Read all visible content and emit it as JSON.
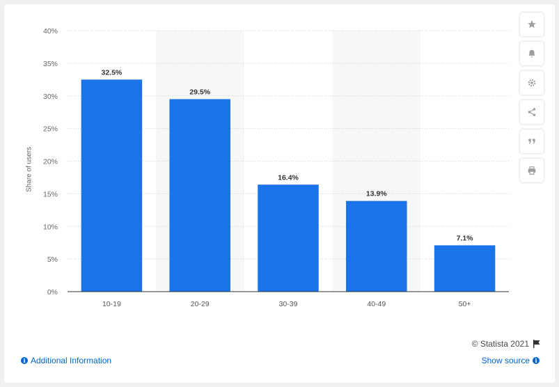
{
  "chart_data": {
    "type": "bar",
    "categories": [
      "10-19",
      "20-29",
      "30-39",
      "40-49",
      "50+"
    ],
    "values": [
      32.5,
      29.5,
      16.4,
      13.9,
      7.1
    ],
    "value_labels": [
      "32.5%",
      "29.5%",
      "16.4%",
      "13.9%",
      "7.1%"
    ],
    "title": "",
    "xlabel": "",
    "ylabel": "Share of users",
    "ylim": [
      0,
      40
    ],
    "yticks": [
      0,
      5,
      10,
      15,
      20,
      25,
      30,
      35,
      40
    ],
    "ytick_suffix": "%",
    "grid": true,
    "bar_color": "#1a73e8",
    "alt_band_color": "#f7f7f7"
  },
  "footer": {
    "copyright": "© Statista 2021",
    "additional_info": "Additional Information",
    "show_source": "Show source"
  },
  "toolbar": {
    "icons": [
      "star-icon",
      "bell-icon",
      "gear-icon",
      "share-icon",
      "quote-icon",
      "print-icon"
    ]
  }
}
